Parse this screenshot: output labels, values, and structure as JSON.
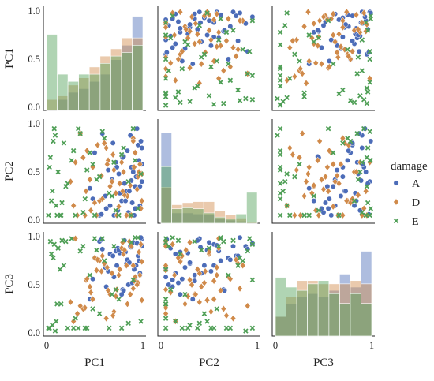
{
  "chart_data": {
    "type": "scatter",
    "layout": "pairplot",
    "variables": [
      "PC1",
      "PC2",
      "PC3"
    ],
    "hue": "damage",
    "axis_range": [
      0,
      1
    ],
    "y_ticks": [
      "0.0",
      "0.5",
      "1.0"
    ],
    "x_ticks": [
      "0",
      "1"
    ],
    "legend": {
      "title": "damage",
      "placement": "right",
      "entries": [
        {
          "label": "A",
          "color": "#4c6cb8",
          "marker": "circle"
        },
        {
          "label": "D",
          "color": "#d08a4a",
          "marker": "diamond"
        },
        {
          "label": "E",
          "color": "#4f9f56",
          "marker": "x"
        }
      ]
    },
    "histograms": {
      "PC1": {
        "bins": [
          0.0,
          0.111,
          0.222,
          0.333,
          0.444,
          0.556,
          0.667,
          0.778,
          0.889,
          1.0
        ],
        "A": [
          0.0,
          0.03,
          0.05,
          0.06,
          0.08,
          0.1,
          0.14,
          0.18,
          0.26
        ],
        "D": [
          0.03,
          0.04,
          0.07,
          0.09,
          0.12,
          0.15,
          0.17,
          0.2,
          0.2
        ],
        "E": [
          0.21,
          0.1,
          0.08,
          0.1,
          0.1,
          0.13,
          0.15,
          0.16,
          0.18
        ],
        "max_density": 0.27
      },
      "PC2": {
        "bins": [
          0.0,
          0.111,
          0.222,
          0.333,
          0.444,
          0.556,
          0.667,
          0.778,
          0.889,
          1.0
        ],
        "A": [
          0.88,
          0.1,
          0.1,
          0.09,
          0.08,
          0.04,
          0.03,
          0.02,
          0.0
        ],
        "D": [
          0.35,
          0.18,
          0.2,
          0.21,
          0.21,
          0.12,
          0.08,
          0.05,
          0.01
        ],
        "E": [
          0.55,
          0.14,
          0.15,
          0.14,
          0.1,
          0.06,
          0.04,
          0.09,
          0.3
        ],
        "max_density": 0.95
      },
      "PC3": {
        "bins": [
          0.0,
          0.111,
          0.222,
          0.333,
          0.444,
          0.556,
          0.667,
          0.778,
          0.889,
          1.0
        ],
        "A": [
          0.06,
          0.1,
          0.12,
          0.13,
          0.12,
          0.14,
          0.19,
          0.15,
          0.26
        ],
        "D": [
          0.06,
          0.12,
          0.17,
          0.17,
          0.16,
          0.16,
          0.16,
          0.17,
          0.16
        ],
        "E": [
          0.18,
          0.15,
          0.14,
          0.16,
          0.17,
          0.13,
          0.1,
          0.13,
          0.1
        ],
        "max_density": 0.3
      }
    },
    "points": {
      "A": {
        "PC1": [
          0.55,
          0.68,
          0.74,
          0.79,
          0.83,
          0.88,
          0.92,
          0.95,
          0.99,
          0.61,
          0.72,
          0.85,
          0.9,
          0.97,
          0.5,
          0.66,
          0.78,
          0.87,
          0.93,
          0.58,
          0.7,
          0.81,
          0.96,
          0.64,
          0.76,
          0.89,
          0.98,
          0.45,
          0.84,
          0.91,
          0.99,
          0.62,
          0.75,
          0.86,
          0.94,
          0.48,
          0.69,
          0.8,
          0.88,
          0.97,
          0.57,
          0.73,
          0.82,
          0.92,
          0.99
        ],
        "PC2": [
          0.05,
          0.42,
          0.1,
          0.65,
          0.3,
          0.55,
          0.12,
          0.78,
          0.4,
          0.25,
          0.6,
          0.08,
          0.5,
          0.35,
          0.7,
          0.15,
          0.2,
          0.88,
          0.45,
          0.9,
          0.05,
          0.38,
          0.62,
          0.52,
          0.28,
          0.18,
          0.82,
          0.33,
          0.72,
          0.05,
          0.58,
          0.12,
          0.48,
          0.3,
          0.95,
          0.22,
          0.8,
          0.66,
          0.41,
          0.15,
          0.06,
          0.55,
          0.2,
          0.35,
          0.75
        ],
        "PC3": [
          0.95,
          0.62,
          0.88,
          0.45,
          0.72,
          0.92,
          0.55,
          0.8,
          0.98,
          0.68,
          0.85,
          0.5,
          0.94,
          0.6,
          0.78,
          0.82,
          0.4,
          0.9,
          0.7,
          0.87,
          0.58,
          0.96,
          0.75,
          0.64,
          0.83,
          0.52,
          0.99,
          0.35,
          0.76,
          0.66,
          0.91,
          0.48,
          0.86,
          0.73,
          0.93,
          0.56,
          0.8,
          0.44,
          0.89,
          0.62,
          0.97,
          0.7,
          0.84,
          0.54,
          0.9
        ]
      },
      "D": {
        "PC1": [
          0.32,
          0.41,
          0.48,
          0.55,
          0.62,
          0.68,
          0.73,
          0.78,
          0.84,
          0.9,
          0.95,
          0.98,
          0.38,
          0.52,
          0.66,
          0.8,
          0.92,
          0.28,
          0.45,
          0.6,
          0.72,
          0.86,
          0.97,
          0.35,
          0.5,
          0.64,
          0.76,
          0.88,
          0.99,
          0.42,
          0.58,
          0.7,
          0.83,
          0.94,
          0.3,
          0.46,
          0.57,
          0.69,
          0.81,
          0.91,
          0.25,
          0.53,
          0.75,
          0.87,
          0.96,
          0.4,
          0.63,
          0.79,
          0.9,
          0.99
        ],
        "PC2": [
          0.05,
          0.3,
          0.55,
          0.2,
          0.75,
          0.4,
          0.05,
          0.6,
          0.25,
          0.85,
          0.45,
          0.12,
          0.65,
          0.05,
          0.35,
          0.5,
          0.7,
          0.15,
          0.42,
          0.8,
          0.28,
          0.05,
          0.58,
          0.9,
          0.18,
          0.62,
          0.38,
          0.05,
          0.48,
          0.72,
          0.22,
          0.52,
          0.05,
          0.32,
          0.6,
          0.1,
          0.46,
          0.68,
          0.26,
          0.55,
          0.4,
          0.78,
          0.14,
          0.36,
          0.5,
          0.05,
          0.58,
          0.3,
          0.82,
          0.2
        ],
        "PC3": [
          0.2,
          0.55,
          0.35,
          0.75,
          0.15,
          0.62,
          0.45,
          0.88,
          0.3,
          0.7,
          0.52,
          0.92,
          0.25,
          0.65,
          0.4,
          0.82,
          0.58,
          0.12,
          0.48,
          0.72,
          0.38,
          0.95,
          0.6,
          0.28,
          0.78,
          0.44,
          0.66,
          0.9,
          0.34,
          0.56,
          0.8,
          0.22,
          0.7,
          0.5,
          0.98,
          0.42,
          0.64,
          0.18,
          0.86,
          0.54,
          0.32,
          0.76,
          0.6,
          0.4,
          0.84,
          0.26,
          0.68,
          0.94,
          0.46,
          0.74
        ]
      },
      "E": {
        "PC1": [
          0.02,
          0.04,
          0.06,
          0.08,
          0.1,
          0.12,
          0.15,
          0.18,
          0.22,
          0.26,
          0.3,
          0.35,
          0.4,
          0.45,
          0.5,
          0.55,
          0.6,
          0.65,
          0.7,
          0.75,
          0.8,
          0.85,
          0.9,
          0.95,
          0.03,
          0.05,
          0.09,
          0.14,
          0.2,
          0.28,
          0.38,
          0.48,
          0.58,
          0.68,
          0.78,
          0.88,
          0.98,
          0.07,
          0.16,
          0.33,
          0.52,
          0.72,
          0.92,
          0.11,
          0.42
        ],
        "PC2": [
          0.05,
          0.65,
          0.3,
          0.95,
          0.15,
          0.5,
          0.05,
          0.8,
          0.38,
          0.62,
          0.05,
          0.9,
          0.22,
          0.7,
          0.05,
          0.45,
          0.85,
          0.28,
          0.6,
          0.05,
          0.75,
          0.4,
          0.95,
          0.12,
          0.55,
          0.2,
          0.88,
          0.05,
          0.35,
          0.72,
          0.08,
          0.58,
          0.92,
          0.25,
          0.68,
          0.05,
          0.48,
          0.82,
          0.18,
          0.95,
          0.42,
          0.1,
          0.62,
          0.05,
          0.52
        ],
        "PC3": [
          0.05,
          0.95,
          0.08,
          0.92,
          0.12,
          0.88,
          0.3,
          0.7,
          0.05,
          0.98,
          0.15,
          0.85,
          0.05,
          0.6,
          0.98,
          0.2,
          0.75,
          0.05,
          0.9,
          0.35,
          0.96,
          0.1,
          0.55,
          0.99,
          0.05,
          0.82,
          0.02,
          0.66,
          0.95,
          0.05,
          0.9,
          0.25,
          0.98,
          0.4,
          0.05,
          0.94,
          0.12,
          0.78,
          0.96,
          0.05,
          0.86,
          0.45,
          0.99,
          0.3,
          0.05
        ]
      }
    }
  }
}
